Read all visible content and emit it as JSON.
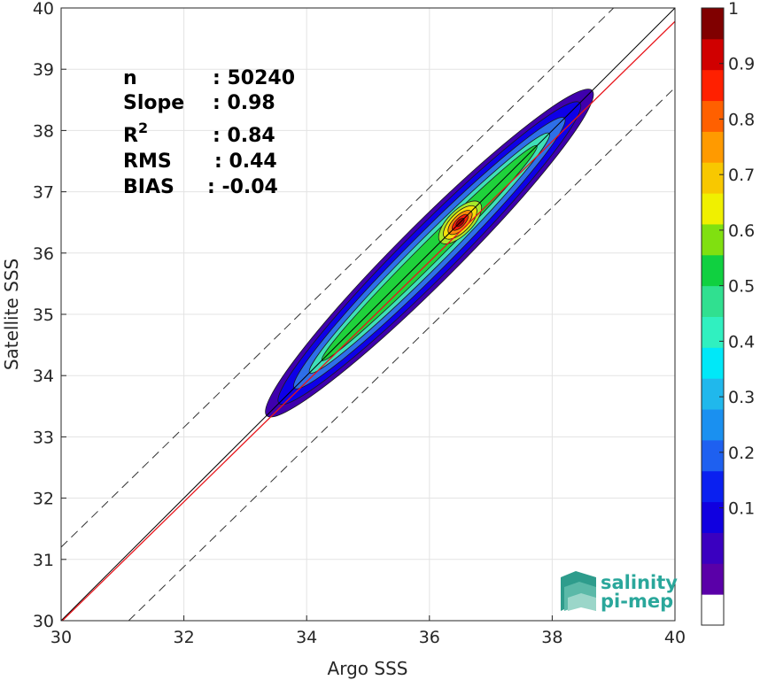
{
  "chart_data": {
    "type": "scatter",
    "subtype": "density-contour",
    "xlabel": "Argo SSS",
    "ylabel": "Satellite SSS",
    "xlim": [
      30,
      40
    ],
    "ylim": [
      30,
      40
    ],
    "xticks": [
      "30",
      "32",
      "34",
      "36",
      "38",
      "40"
    ],
    "yticks": [
      "30",
      "31",
      "32",
      "33",
      "34",
      "35",
      "36",
      "37",
      "38",
      "39",
      "40"
    ],
    "grid": true,
    "stats": [
      {
        "label": "n",
        "value": ": 50240"
      },
      {
        "label": "Slope",
        "value": ": 0.98"
      },
      {
        "label": "R",
        "sup": "2",
        "value": ": 0.84"
      },
      {
        "label": "RMS",
        "value": ": 0.44"
      },
      {
        "label": "BIAS",
        "value": ": -0.04"
      }
    ],
    "lines": {
      "one_to_one": {
        "color": "#000000",
        "x": [
          30,
          40
        ],
        "y": [
          30,
          40
        ]
      },
      "regression": {
        "color": "#e8151b",
        "x": [
          30,
          40
        ],
        "y": [
          29.98,
          39.78
        ]
      },
      "upper_bound": {
        "style": "dashed",
        "x": [
          30,
          39
        ],
        "y": [
          31.2,
          40
        ]
      },
      "lower_bound": {
        "style": "dashed",
        "x": [
          31.1,
          40
        ],
        "y": [
          30,
          38.7
        ]
      }
    },
    "density_levels": [
      {
        "level": 0.05,
        "color": "#3f00ad",
        "cx": 36.0,
        "cy": 36.0,
        "a": 2.65,
        "b": 0.34
      },
      {
        "level": 0.1,
        "color": "#0e00e8",
        "cx": 36.0,
        "cy": 36.0,
        "a": 2.45,
        "b": 0.29
      },
      {
        "level": 0.2,
        "color": "#2e6fe8",
        "cx": 36.0,
        "cy": 36.0,
        "a": 2.2,
        "b": 0.23
      },
      {
        "level": 0.35,
        "color": "#3fe0b8",
        "cx": 36.0,
        "cy": 36.0,
        "a": 1.95,
        "b": 0.17
      },
      {
        "level": 0.5,
        "color": "#1fd23b",
        "cx": 36.0,
        "cy": 36.0,
        "a": 1.75,
        "b": 0.12
      },
      {
        "level": 0.6,
        "color": "#a8e82a",
        "cx": 36.5,
        "cy": 36.5,
        "a": 0.32,
        "b": 0.14
      },
      {
        "level": 0.7,
        "color": "#f5e00a",
        "cx": 36.5,
        "cy": 36.5,
        "a": 0.25,
        "b": 0.11
      },
      {
        "level": 0.8,
        "color": "#ff8a0a",
        "cx": 36.5,
        "cy": 36.5,
        "a": 0.18,
        "b": 0.08
      },
      {
        "level": 0.9,
        "color": "#ff1a0a",
        "cx": 36.5,
        "cy": 36.5,
        "a": 0.12,
        "b": 0.05
      },
      {
        "level": 1.0,
        "color": "#b00000",
        "cx": 36.5,
        "cy": 36.5,
        "a": 0.06,
        "b": 0.03
      }
    ],
    "colorbar": {
      "ticks": [
        "0.1",
        "0.2",
        "0.3",
        "0.4",
        "0.5",
        "0.6",
        "0.7",
        "0.8",
        "0.9",
        "1"
      ],
      "colors": [
        "#ffffff",
        "#5a00a8",
        "#3a00c0",
        "#1000e0",
        "#0a20f0",
        "#1e60f0",
        "#1a90f0",
        "#20b8ec",
        "#00e8f8",
        "#30f0c0",
        "#30e090",
        "#10d040",
        "#80e010",
        "#f0f000",
        "#f8c800",
        "#ff9a00",
        "#ff6000",
        "#ff2000",
        "#d00000",
        "#800000"
      ]
    }
  },
  "logo": {
    "line1": "salinity",
    "line2": "pi-mep"
  }
}
